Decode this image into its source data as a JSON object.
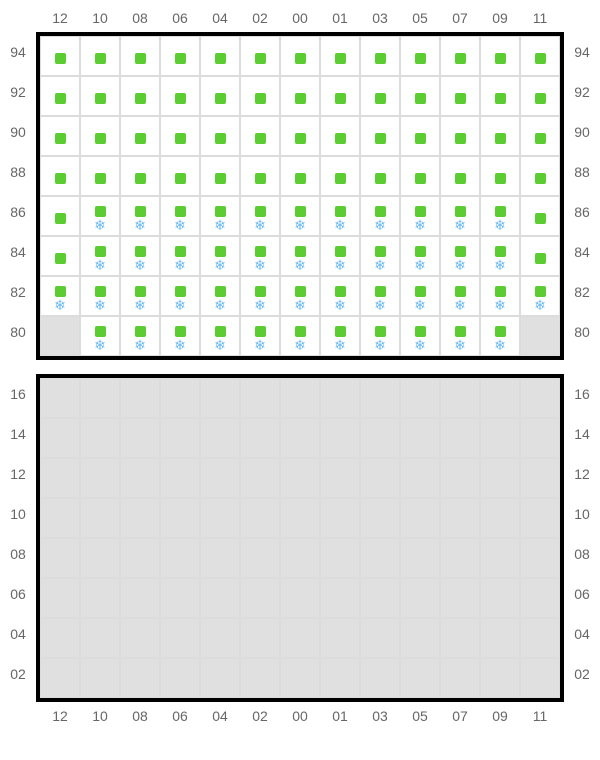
{
  "colors": {
    "square": "#5ccc33",
    "snowflake": "#6db8f2",
    "cellWhite": "#ffffff",
    "cellGray": "#e0e0e0",
    "border": "#000000",
    "gridline": "#dcdcdc",
    "label": "#666666"
  },
  "layout": {
    "cellSize": 40,
    "squareSize": 11,
    "borderWidth": 4,
    "labelFontSize": 14
  },
  "colLabels": [
    "12",
    "10",
    "08",
    "06",
    "04",
    "02",
    "00",
    "01",
    "03",
    "05",
    "07",
    "09",
    "11"
  ],
  "topGrid": {
    "rowLabels": [
      "94",
      "92",
      "90",
      "88",
      "86",
      "84",
      "82",
      "80"
    ],
    "cells": [
      [
        {
          "bg": "white",
          "sq": true,
          "sn": false
        },
        {
          "bg": "white",
          "sq": true,
          "sn": false
        },
        {
          "bg": "white",
          "sq": true,
          "sn": false
        },
        {
          "bg": "white",
          "sq": true,
          "sn": false
        },
        {
          "bg": "white",
          "sq": true,
          "sn": false
        },
        {
          "bg": "white",
          "sq": true,
          "sn": false
        },
        {
          "bg": "white",
          "sq": true,
          "sn": false
        },
        {
          "bg": "white",
          "sq": true,
          "sn": false
        },
        {
          "bg": "white",
          "sq": true,
          "sn": false
        },
        {
          "bg": "white",
          "sq": true,
          "sn": false
        },
        {
          "bg": "white",
          "sq": true,
          "sn": false
        },
        {
          "bg": "white",
          "sq": true,
          "sn": false
        },
        {
          "bg": "white",
          "sq": true,
          "sn": false
        }
      ],
      [
        {
          "bg": "white",
          "sq": true,
          "sn": false
        },
        {
          "bg": "white",
          "sq": true,
          "sn": false
        },
        {
          "bg": "white",
          "sq": true,
          "sn": false
        },
        {
          "bg": "white",
          "sq": true,
          "sn": false
        },
        {
          "bg": "white",
          "sq": true,
          "sn": false
        },
        {
          "bg": "white",
          "sq": true,
          "sn": false
        },
        {
          "bg": "white",
          "sq": true,
          "sn": false
        },
        {
          "bg": "white",
          "sq": true,
          "sn": false
        },
        {
          "bg": "white",
          "sq": true,
          "sn": false
        },
        {
          "bg": "white",
          "sq": true,
          "sn": false
        },
        {
          "bg": "white",
          "sq": true,
          "sn": false
        },
        {
          "bg": "white",
          "sq": true,
          "sn": false
        },
        {
          "bg": "white",
          "sq": true,
          "sn": false
        }
      ],
      [
        {
          "bg": "white",
          "sq": true,
          "sn": false
        },
        {
          "bg": "white",
          "sq": true,
          "sn": false
        },
        {
          "bg": "white",
          "sq": true,
          "sn": false
        },
        {
          "bg": "white",
          "sq": true,
          "sn": false
        },
        {
          "bg": "white",
          "sq": true,
          "sn": false
        },
        {
          "bg": "white",
          "sq": true,
          "sn": false
        },
        {
          "bg": "white",
          "sq": true,
          "sn": false
        },
        {
          "bg": "white",
          "sq": true,
          "sn": false
        },
        {
          "bg": "white",
          "sq": true,
          "sn": false
        },
        {
          "bg": "white",
          "sq": true,
          "sn": false
        },
        {
          "bg": "white",
          "sq": true,
          "sn": false
        },
        {
          "bg": "white",
          "sq": true,
          "sn": false
        },
        {
          "bg": "white",
          "sq": true,
          "sn": false
        }
      ],
      [
        {
          "bg": "white",
          "sq": true,
          "sn": false
        },
        {
          "bg": "white",
          "sq": true,
          "sn": false
        },
        {
          "bg": "white",
          "sq": true,
          "sn": false
        },
        {
          "bg": "white",
          "sq": true,
          "sn": false
        },
        {
          "bg": "white",
          "sq": true,
          "sn": false
        },
        {
          "bg": "white",
          "sq": true,
          "sn": false
        },
        {
          "bg": "white",
          "sq": true,
          "sn": false
        },
        {
          "bg": "white",
          "sq": true,
          "sn": false
        },
        {
          "bg": "white",
          "sq": true,
          "sn": false
        },
        {
          "bg": "white",
          "sq": true,
          "sn": false
        },
        {
          "bg": "white",
          "sq": true,
          "sn": false
        },
        {
          "bg": "white",
          "sq": true,
          "sn": false
        },
        {
          "bg": "white",
          "sq": true,
          "sn": false
        }
      ],
      [
        {
          "bg": "white",
          "sq": true,
          "sn": false
        },
        {
          "bg": "white",
          "sq": true,
          "sn": true
        },
        {
          "bg": "white",
          "sq": true,
          "sn": true
        },
        {
          "bg": "white",
          "sq": true,
          "sn": true
        },
        {
          "bg": "white",
          "sq": true,
          "sn": true
        },
        {
          "bg": "white",
          "sq": true,
          "sn": true
        },
        {
          "bg": "white",
          "sq": true,
          "sn": true
        },
        {
          "bg": "white",
          "sq": true,
          "sn": true
        },
        {
          "bg": "white",
          "sq": true,
          "sn": true
        },
        {
          "bg": "white",
          "sq": true,
          "sn": true
        },
        {
          "bg": "white",
          "sq": true,
          "sn": true
        },
        {
          "bg": "white",
          "sq": true,
          "sn": true
        },
        {
          "bg": "white",
          "sq": true,
          "sn": false
        }
      ],
      [
        {
          "bg": "white",
          "sq": true,
          "sn": false
        },
        {
          "bg": "white",
          "sq": true,
          "sn": true
        },
        {
          "bg": "white",
          "sq": true,
          "sn": true
        },
        {
          "bg": "white",
          "sq": true,
          "sn": true
        },
        {
          "bg": "white",
          "sq": true,
          "sn": true
        },
        {
          "bg": "white",
          "sq": true,
          "sn": true
        },
        {
          "bg": "white",
          "sq": true,
          "sn": true
        },
        {
          "bg": "white",
          "sq": true,
          "sn": true
        },
        {
          "bg": "white",
          "sq": true,
          "sn": true
        },
        {
          "bg": "white",
          "sq": true,
          "sn": true
        },
        {
          "bg": "white",
          "sq": true,
          "sn": true
        },
        {
          "bg": "white",
          "sq": true,
          "sn": true
        },
        {
          "bg": "white",
          "sq": true,
          "sn": false
        }
      ],
      [
        {
          "bg": "white",
          "sq": true,
          "sn": true
        },
        {
          "bg": "white",
          "sq": true,
          "sn": true
        },
        {
          "bg": "white",
          "sq": true,
          "sn": true
        },
        {
          "bg": "white",
          "sq": true,
          "sn": true
        },
        {
          "bg": "white",
          "sq": true,
          "sn": true
        },
        {
          "bg": "white",
          "sq": true,
          "sn": true
        },
        {
          "bg": "white",
          "sq": true,
          "sn": true
        },
        {
          "bg": "white",
          "sq": true,
          "sn": true
        },
        {
          "bg": "white",
          "sq": true,
          "sn": true
        },
        {
          "bg": "white",
          "sq": true,
          "sn": true
        },
        {
          "bg": "white",
          "sq": true,
          "sn": true
        },
        {
          "bg": "white",
          "sq": true,
          "sn": true
        },
        {
          "bg": "white",
          "sq": true,
          "sn": true
        }
      ],
      [
        {
          "bg": "gray",
          "sq": false,
          "sn": false
        },
        {
          "bg": "white",
          "sq": true,
          "sn": true
        },
        {
          "bg": "white",
          "sq": true,
          "sn": true
        },
        {
          "bg": "white",
          "sq": true,
          "sn": true
        },
        {
          "bg": "white",
          "sq": true,
          "sn": true
        },
        {
          "bg": "white",
          "sq": true,
          "sn": true
        },
        {
          "bg": "white",
          "sq": true,
          "sn": true
        },
        {
          "bg": "white",
          "sq": true,
          "sn": true
        },
        {
          "bg": "white",
          "sq": true,
          "sn": true
        },
        {
          "bg": "white",
          "sq": true,
          "sn": true
        },
        {
          "bg": "white",
          "sq": true,
          "sn": true
        },
        {
          "bg": "white",
          "sq": true,
          "sn": true
        },
        {
          "bg": "gray",
          "sq": false,
          "sn": false
        }
      ]
    ]
  },
  "bottomGrid": {
    "rowLabels": [
      "16",
      "14",
      "12",
      "10",
      "08",
      "06",
      "04",
      "02"
    ],
    "cells": [
      [
        {
          "bg": "gray"
        },
        {
          "bg": "gray"
        },
        {
          "bg": "gray"
        },
        {
          "bg": "gray"
        },
        {
          "bg": "gray"
        },
        {
          "bg": "gray"
        },
        {
          "bg": "gray"
        },
        {
          "bg": "gray"
        },
        {
          "bg": "gray"
        },
        {
          "bg": "gray"
        },
        {
          "bg": "gray"
        },
        {
          "bg": "gray"
        },
        {
          "bg": "gray"
        }
      ],
      [
        {
          "bg": "gray"
        },
        {
          "bg": "gray"
        },
        {
          "bg": "gray"
        },
        {
          "bg": "gray"
        },
        {
          "bg": "gray"
        },
        {
          "bg": "gray"
        },
        {
          "bg": "gray"
        },
        {
          "bg": "gray"
        },
        {
          "bg": "gray"
        },
        {
          "bg": "gray"
        },
        {
          "bg": "gray"
        },
        {
          "bg": "gray"
        },
        {
          "bg": "gray"
        }
      ],
      [
        {
          "bg": "gray"
        },
        {
          "bg": "gray"
        },
        {
          "bg": "gray"
        },
        {
          "bg": "gray"
        },
        {
          "bg": "gray"
        },
        {
          "bg": "gray"
        },
        {
          "bg": "gray"
        },
        {
          "bg": "gray"
        },
        {
          "bg": "gray"
        },
        {
          "bg": "gray"
        },
        {
          "bg": "gray"
        },
        {
          "bg": "gray"
        },
        {
          "bg": "gray"
        }
      ],
      [
        {
          "bg": "gray"
        },
        {
          "bg": "gray"
        },
        {
          "bg": "gray"
        },
        {
          "bg": "gray"
        },
        {
          "bg": "gray"
        },
        {
          "bg": "gray"
        },
        {
          "bg": "gray"
        },
        {
          "bg": "gray"
        },
        {
          "bg": "gray"
        },
        {
          "bg": "gray"
        },
        {
          "bg": "gray"
        },
        {
          "bg": "gray"
        },
        {
          "bg": "gray"
        }
      ],
      [
        {
          "bg": "gray"
        },
        {
          "bg": "gray"
        },
        {
          "bg": "gray"
        },
        {
          "bg": "gray"
        },
        {
          "bg": "gray"
        },
        {
          "bg": "gray"
        },
        {
          "bg": "gray"
        },
        {
          "bg": "gray"
        },
        {
          "bg": "gray"
        },
        {
          "bg": "gray"
        },
        {
          "bg": "gray"
        },
        {
          "bg": "gray"
        },
        {
          "bg": "gray"
        }
      ],
      [
        {
          "bg": "gray"
        },
        {
          "bg": "gray"
        },
        {
          "bg": "gray"
        },
        {
          "bg": "gray"
        },
        {
          "bg": "gray"
        },
        {
          "bg": "gray"
        },
        {
          "bg": "gray"
        },
        {
          "bg": "gray"
        },
        {
          "bg": "gray"
        },
        {
          "bg": "gray"
        },
        {
          "bg": "gray"
        },
        {
          "bg": "gray"
        },
        {
          "bg": "gray"
        }
      ],
      [
        {
          "bg": "gray"
        },
        {
          "bg": "gray"
        },
        {
          "bg": "gray"
        },
        {
          "bg": "gray"
        },
        {
          "bg": "gray"
        },
        {
          "bg": "gray"
        },
        {
          "bg": "gray"
        },
        {
          "bg": "gray"
        },
        {
          "bg": "gray"
        },
        {
          "bg": "gray"
        },
        {
          "bg": "gray"
        },
        {
          "bg": "gray"
        },
        {
          "bg": "gray"
        }
      ],
      [
        {
          "bg": "gray"
        },
        {
          "bg": "gray"
        },
        {
          "bg": "gray"
        },
        {
          "bg": "gray"
        },
        {
          "bg": "gray"
        },
        {
          "bg": "gray"
        },
        {
          "bg": "gray"
        },
        {
          "bg": "gray"
        },
        {
          "bg": "gray"
        },
        {
          "bg": "gray"
        },
        {
          "bg": "gray"
        },
        {
          "bg": "gray"
        },
        {
          "bg": "gray"
        }
      ]
    ]
  },
  "snowflakeGlyph": "❄"
}
